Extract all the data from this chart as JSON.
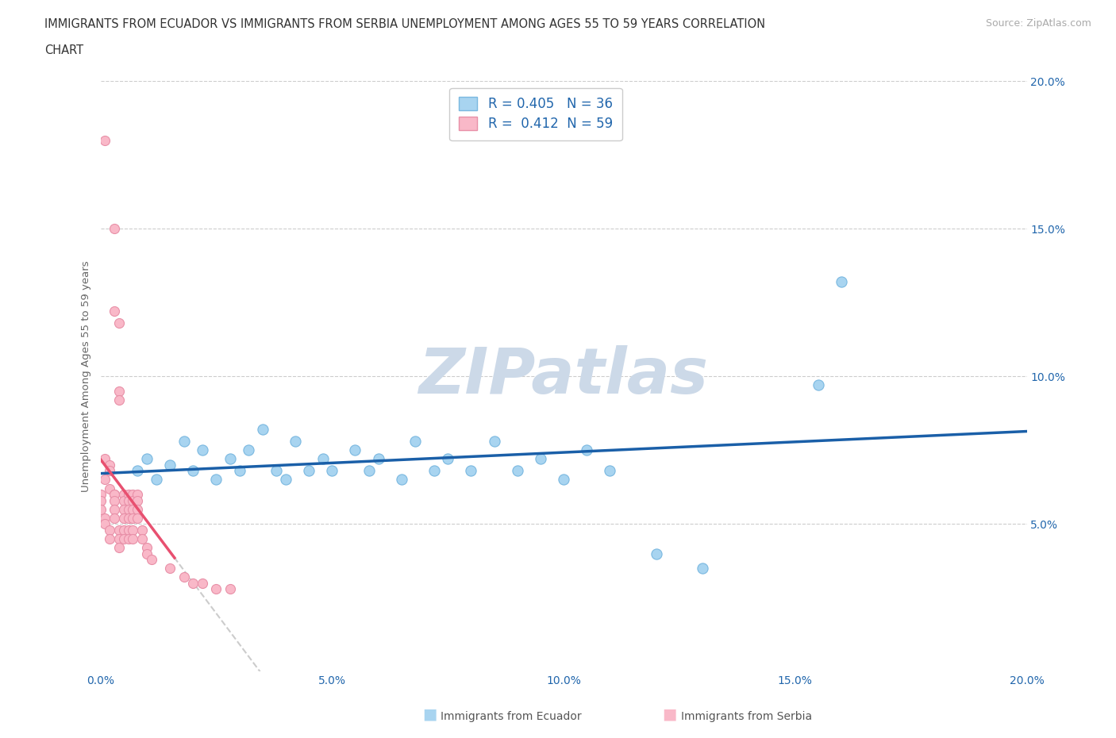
{
  "title_line1": "IMMIGRANTS FROM ECUADOR VS IMMIGRANTS FROM SERBIA UNEMPLOYMENT AMONG AGES 55 TO 59 YEARS CORRELATION",
  "title_line2": "CHART",
  "source_text": "Source: ZipAtlas.com",
  "ylabel": "Unemployment Among Ages 55 to 59 years",
  "xlim": [
    0.0,
    0.2
  ],
  "ylim": [
    0.0,
    0.2
  ],
  "xtick_labels": [
    "0.0%",
    "5.0%",
    "10.0%",
    "15.0%",
    "20.0%"
  ],
  "xtick_vals": [
    0.0,
    0.05,
    0.1,
    0.15,
    0.2
  ],
  "ytick_labels": [
    "5.0%",
    "10.0%",
    "15.0%",
    "20.0%"
  ],
  "ytick_vals": [
    0.05,
    0.1,
    0.15,
    0.2
  ],
  "ecuador_color": "#a8d4f0",
  "ecuador_edge": "#7ab8e0",
  "serbia_color": "#f9b8c8",
  "serbia_edge": "#e890a8",
  "trendline_ecuador_color": "#1a5fa8",
  "trendline_serbia_color": "#e85070",
  "r_ecuador": 0.405,
  "n_ecuador": 36,
  "r_serbia": 0.412,
  "n_serbia": 59,
  "ecuador_scatter": [
    [
      0.008,
      0.068
    ],
    [
      0.01,
      0.072
    ],
    [
      0.012,
      0.065
    ],
    [
      0.015,
      0.07
    ],
    [
      0.018,
      0.078
    ],
    [
      0.02,
      0.068
    ],
    [
      0.022,
      0.075
    ],
    [
      0.025,
      0.065
    ],
    [
      0.028,
      0.072
    ],
    [
      0.03,
      0.068
    ],
    [
      0.032,
      0.075
    ],
    [
      0.035,
      0.082
    ],
    [
      0.038,
      0.068
    ],
    [
      0.04,
      0.065
    ],
    [
      0.042,
      0.078
    ],
    [
      0.045,
      0.068
    ],
    [
      0.048,
      0.072
    ],
    [
      0.05,
      0.068
    ],
    [
      0.055,
      0.075
    ],
    [
      0.058,
      0.068
    ],
    [
      0.06,
      0.072
    ],
    [
      0.065,
      0.065
    ],
    [
      0.068,
      0.078
    ],
    [
      0.072,
      0.068
    ],
    [
      0.075,
      0.072
    ],
    [
      0.08,
      0.068
    ],
    [
      0.085,
      0.078
    ],
    [
      0.09,
      0.068
    ],
    [
      0.095,
      0.072
    ],
    [
      0.1,
      0.065
    ],
    [
      0.105,
      0.075
    ],
    [
      0.11,
      0.068
    ],
    [
      0.12,
      0.04
    ],
    [
      0.13,
      0.035
    ],
    [
      0.155,
      0.097
    ],
    [
      0.16,
      0.132
    ]
  ],
  "serbia_scatter": [
    [
      0.001,
      0.18
    ],
    [
      0.003,
      0.15
    ],
    [
      0.003,
      0.122
    ],
    [
      0.004,
      0.118
    ],
    [
      0.004,
      0.095
    ],
    [
      0.004,
      0.092
    ],
    [
      0.001,
      0.072
    ],
    [
      0.002,
      0.07
    ],
    [
      0.002,
      0.068
    ],
    [
      0.001,
      0.065
    ],
    [
      0.002,
      0.062
    ],
    [
      0.003,
      0.06
    ],
    [
      0.0,
      0.06
    ],
    [
      0.0,
      0.058
    ],
    [
      0.0,
      0.055
    ],
    [
      0.001,
      0.052
    ],
    [
      0.001,
      0.05
    ],
    [
      0.002,
      0.048
    ],
    [
      0.002,
      0.045
    ],
    [
      0.003,
      0.06
    ],
    [
      0.003,
      0.058
    ],
    [
      0.003,
      0.055
    ],
    [
      0.003,
      0.052
    ],
    [
      0.004,
      0.048
    ],
    [
      0.004,
      0.045
    ],
    [
      0.004,
      0.042
    ],
    [
      0.005,
      0.06
    ],
    [
      0.005,
      0.058
    ],
    [
      0.005,
      0.055
    ],
    [
      0.005,
      0.052
    ],
    [
      0.005,
      0.048
    ],
    [
      0.005,
      0.045
    ],
    [
      0.006,
      0.06
    ],
    [
      0.006,
      0.058
    ],
    [
      0.006,
      0.055
    ],
    [
      0.006,
      0.052
    ],
    [
      0.006,
      0.048
    ],
    [
      0.006,
      0.045
    ],
    [
      0.007,
      0.06
    ],
    [
      0.007,
      0.058
    ],
    [
      0.007,
      0.055
    ],
    [
      0.007,
      0.052
    ],
    [
      0.007,
      0.048
    ],
    [
      0.007,
      0.045
    ],
    [
      0.008,
      0.06
    ],
    [
      0.008,
      0.058
    ],
    [
      0.008,
      0.055
    ],
    [
      0.008,
      0.052
    ],
    [
      0.009,
      0.048
    ],
    [
      0.009,
      0.045
    ],
    [
      0.01,
      0.042
    ],
    [
      0.01,
      0.04
    ],
    [
      0.011,
      0.038
    ],
    [
      0.015,
      0.035
    ],
    [
      0.018,
      0.032
    ],
    [
      0.02,
      0.03
    ],
    [
      0.022,
      0.03
    ],
    [
      0.025,
      0.028
    ],
    [
      0.028,
      0.028
    ]
  ],
  "background_color": "#ffffff",
  "watermark_color": "#ccd9e8"
}
